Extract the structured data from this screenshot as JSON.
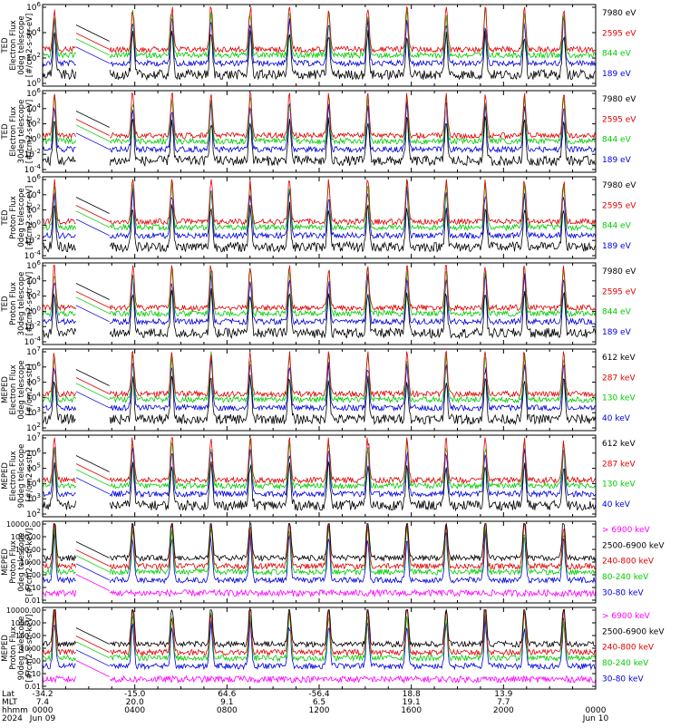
{
  "colors": {
    "black": "#000000",
    "red": "#e00000",
    "green": "#00cc00",
    "blue": "#0000dd",
    "magenta": "#ff00ff"
  },
  "panels": [
    {
      "ylabel": [
        "TED",
        "Electron Flux",
        "0deg telescope",
        "[#/cm2-s-str-eV]"
      ],
      "yticks": [
        "10^6",
        "10^4",
        "10^2",
        "10^0"
      ],
      "legend": [
        {
          "label": "7980 eV",
          "color": "black"
        },
        {
          "label": "2595 eV",
          "color": "red"
        },
        {
          "label": "844 eV",
          "color": "green"
        },
        {
          "label": "189 eV",
          "color": "blue"
        }
      ]
    },
    {
      "ylabel": [
        "TED",
        "Electron Flux",
        "30deg telescope",
        "[#/cm2-s-str-eV]"
      ],
      "yticks": [
        "10^6",
        "10^4",
        "10^2",
        "10^0",
        "10^-2",
        "10^-4"
      ],
      "legend": [
        {
          "label": "7980 eV",
          "color": "black"
        },
        {
          "label": "2595 eV",
          "color": "red"
        },
        {
          "label": "844 eV",
          "color": "green"
        },
        {
          "label": "189 eV",
          "color": "blue"
        }
      ]
    },
    {
      "ylabel": [
        "TED",
        "Proton Flux",
        "0deg telescope",
        "[#/cm2-s-str-eV]"
      ],
      "yticks": [
        "10^6",
        "10^4",
        "10^2",
        "10^0",
        "10^-2",
        "10^-4"
      ],
      "legend": [
        {
          "label": "7980 eV",
          "color": "black"
        },
        {
          "label": "2595 eV",
          "color": "red"
        },
        {
          "label": "844 eV",
          "color": "green"
        },
        {
          "label": "189 eV",
          "color": "blue"
        }
      ]
    },
    {
      "ylabel": [
        "TED",
        "Proton Flux",
        "30deg telescope",
        "[#/cm2-s-str-eV]"
      ],
      "yticks": [
        "10^6",
        "10^4",
        "10^2",
        "10^0",
        "10^-2",
        "10^-4"
      ],
      "legend": [
        {
          "label": "7980 eV",
          "color": "black"
        },
        {
          "label": "2595 eV",
          "color": "red"
        },
        {
          "label": "844 eV",
          "color": "green"
        },
        {
          "label": "189 eV",
          "color": "blue"
        }
      ]
    },
    {
      "ylabel": [
        "MEPED",
        "Electron Flux",
        "0deg telescope",
        "[#/cm2-s-str]"
      ],
      "yticks": [
        "10^7",
        "10^6",
        "10^5",
        "10^4",
        "10^3",
        "10^2"
      ],
      "legend": [
        {
          "label": "612 keV",
          "color": "black"
        },
        {
          "label": "287 keV",
          "color": "red"
        },
        {
          "label": "130 keV",
          "color": "green"
        },
        {
          "label": "40 keV",
          "color": "blue"
        }
      ]
    },
    {
      "ylabel": [
        "MEPED",
        "Electron Flux",
        "90deg telescope",
        "[#/cm2-s-str]"
      ],
      "yticks": [
        "10^7",
        "10^6",
        "10^5",
        "10^4",
        "10^3",
        "10^2"
      ],
      "legend": [
        {
          "label": "612 keV",
          "color": "black"
        },
        {
          "label": "287 keV",
          "color": "red"
        },
        {
          "label": "130 keV",
          "color": "green"
        },
        {
          "label": "40 keV",
          "color": "blue"
        }
      ]
    },
    {
      "ylabel": [
        "MEPED",
        "Proton Flux",
        "0deg telescope",
        "[#/cm2-s-str-keV]"
      ],
      "yticks": [
        "10000.00",
        "1000.00",
        "100.00",
        "10.00",
        "1.00",
        "0.10",
        "0.01"
      ],
      "legend": [
        {
          "label": "> 6900 keV",
          "color": "magenta"
        },
        {
          "label": "2500-6900 keV",
          "color": "black"
        },
        {
          "label": "240-800 keV",
          "color": "red"
        },
        {
          "label": "80-240 keV",
          "color": "green"
        },
        {
          "label": "30-80 keV",
          "color": "blue"
        }
      ]
    },
    {
      "ylabel": [
        "MEPED",
        "Proton Flux",
        "90deg telescope",
        "[#/cm2-s-str-keV]"
      ],
      "yticks": [
        "10000.00",
        "1000.00",
        "100.00",
        "10.00",
        "1.00",
        "0.10",
        "0.01"
      ],
      "legend": [
        {
          "label": "> 6900 keV",
          "color": "magenta"
        },
        {
          "label": "2500-6900 keV",
          "color": "black"
        },
        {
          "label": "240-800 keV",
          "color": "red"
        },
        {
          "label": "80-240 keV",
          "color": "green"
        },
        {
          "label": "30-80 keV",
          "color": "blue"
        }
      ]
    }
  ],
  "xaxis": {
    "row_labels": [
      "Lat",
      "MLT",
      "hhmm",
      "2024"
    ],
    "ticks": [
      {
        "lat": "-34.2",
        "mlt": "7.4",
        "hhmm": "0000",
        "date": "Jun 09"
      },
      {
        "lat": "-15.0",
        "mlt": "20.0",
        "hhmm": "0400",
        "date": ""
      },
      {
        "lat": "64.6",
        "mlt": "9.1",
        "hhmm": "0800",
        "date": ""
      },
      {
        "lat": "-56.4",
        "mlt": "6.5",
        "hhmm": "1200",
        "date": ""
      },
      {
        "lat": "18.8",
        "mlt": "19.1",
        "hhmm": "1600",
        "date": ""
      },
      {
        "lat": "13.9",
        "mlt": "7.7",
        "hhmm": "2000",
        "date": ""
      },
      {
        "lat": "",
        "mlt": "",
        "hhmm": "0000",
        "date": "Jun 10"
      }
    ]
  },
  "chart_data": {
    "type": "line",
    "x_range_hours": [
      0,
      24
    ],
    "y_scale": "log",
    "data_gap_hours": [
      1.45,
      2.9
    ],
    "orbit_period_hours": 1.7,
    "note_series": "8 stacked panels of particle flux vs time; each series shows periodic spikes per orbit"
  }
}
